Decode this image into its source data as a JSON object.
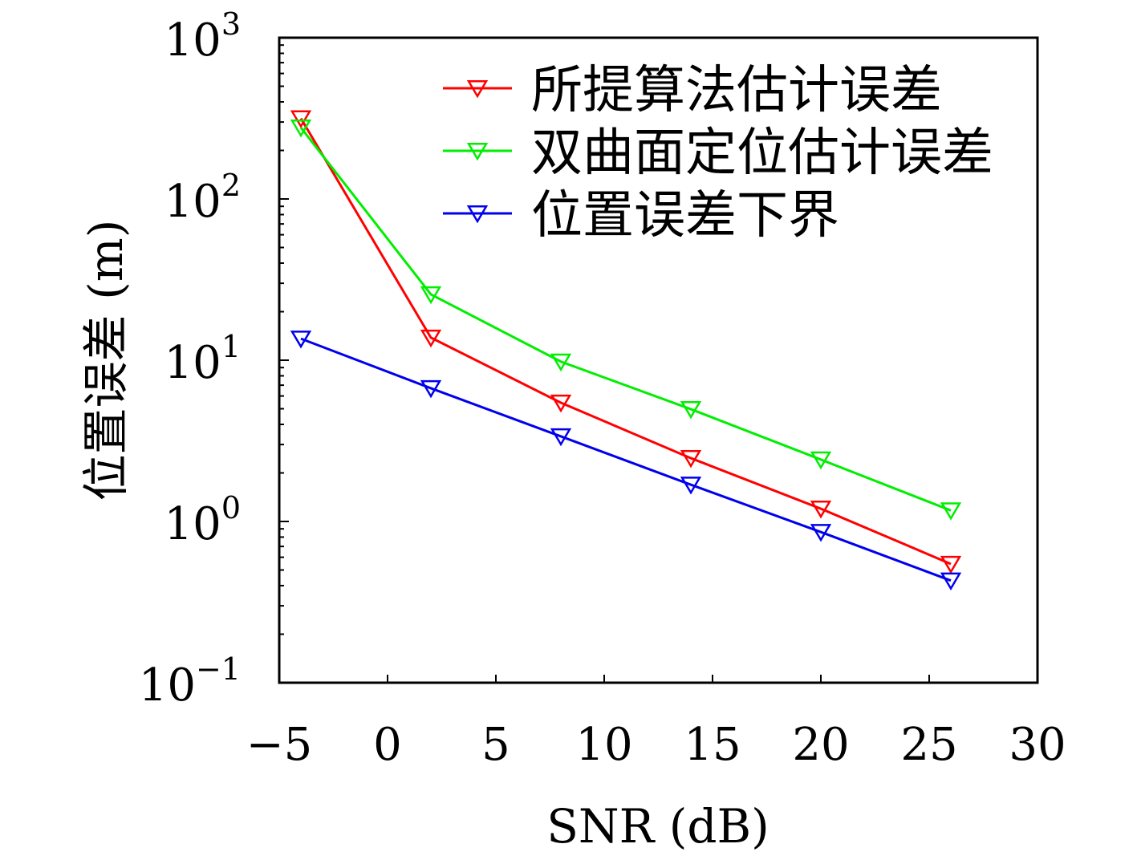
{
  "chart_data": {
    "type": "line",
    "title": "",
    "xlabel": "SNR (dB)",
    "ylabel": "位置误差 (m)",
    "xlim": [
      -5,
      30
    ],
    "ylim": [
      0.1,
      1000
    ],
    "yscale": "log",
    "xticks": [
      -5,
      0,
      5,
      10,
      15,
      20,
      25,
      30
    ],
    "xtick_labels": [
      "−5",
      "0",
      "5",
      "10",
      "15",
      "20",
      "25",
      "30"
    ],
    "yticks": [
      {
        "base": "10",
        "exp": "−1",
        "value": 0.1
      },
      {
        "base": "10",
        "exp": "0",
        "value": 1
      },
      {
        "base": "10",
        "exp": "1",
        "value": 10
      },
      {
        "base": "10",
        "exp": "2",
        "value": 100
      },
      {
        "base": "10",
        "exp": "3",
        "value": 1000
      }
    ],
    "legend_position": "top-right",
    "x": [
      -4,
      2,
      8,
      14,
      20,
      26
    ],
    "series": [
      {
        "name": "所提算法估计误差",
        "color": "#ff0000",
        "marker": "triangle-down",
        "values": [
          316,
          13.8,
          5.45,
          2.47,
          1.2,
          0.545
        ]
      },
      {
        "name": "双曲面定位估计误差",
        "color": "#00ee00",
        "marker": "triangle-down",
        "values": [
          277,
          25.6,
          9.8,
          4.97,
          2.42,
          1.17
        ]
      },
      {
        "name": "位置误差下界",
        "color": "#0000ee",
        "marker": "triangle-down",
        "values": [
          13.6,
          6.7,
          3.37,
          1.69,
          0.86,
          0.43
        ]
      }
    ]
  }
}
